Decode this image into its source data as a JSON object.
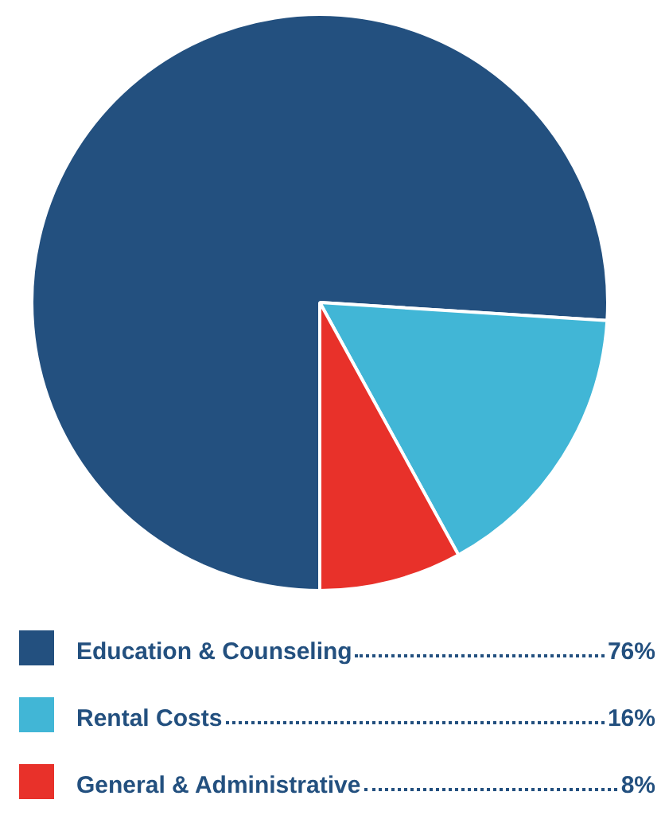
{
  "chart_data": {
    "type": "pie",
    "categories": [
      "Education & Counseling",
      "Rental Costs",
      "General & Administrative"
    ],
    "values": [
      76,
      16,
      8
    ],
    "colors": [
      "#23507f",
      "#41b6d6",
      "#e8312a"
    ],
    "value_labels": [
      "76%",
      "16%",
      "8%"
    ],
    "legend": "bottom"
  }
}
